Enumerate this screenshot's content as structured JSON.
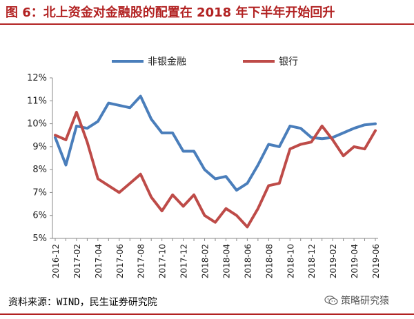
{
  "title": "图 6：北上资金对金融股的配置在 2018 年下半年开始回升",
  "source": "资料来源：WIND，民生证券研究院",
  "watermark": "策略研究猿",
  "colors": {
    "title": "#b22222",
    "series_nonbank": "#4a7ebb",
    "series_bank": "#be4b48"
  },
  "chart_data": {
    "type": "line",
    "title": "",
    "xlabel": "",
    "ylabel": "",
    "ylim": [
      5,
      12
    ],
    "yticks": [
      5,
      6,
      7,
      8,
      9,
      10,
      11,
      12
    ],
    "ytick_labels": [
      "5%",
      "6%",
      "7%",
      "8%",
      "9%",
      "10%",
      "11%",
      "12%"
    ],
    "y_unit": "%",
    "grid": false,
    "legend": "top",
    "categories": [
      "2016-12",
      "2017-01",
      "2017-02",
      "2017-03",
      "2017-04",
      "2017-05",
      "2017-06",
      "2017-07",
      "2017-08",
      "2017-09",
      "2017-10",
      "2017-11",
      "2017-12",
      "2018-01",
      "2018-02",
      "2018-03",
      "2018-04",
      "2018-05",
      "2018-06",
      "2018-07",
      "2018-08",
      "2018-09",
      "2018-10",
      "2018-11",
      "2018-12",
      "2019-01",
      "2019-02",
      "2019-03",
      "2019-04",
      "2019-05",
      "2019-06"
    ],
    "tick_labels": [
      "2016-12",
      "2017-02",
      "2017-04",
      "2017-06",
      "2017-08",
      "2017-10",
      "2017-12",
      "2018-02",
      "2018-04",
      "2018-06",
      "2018-08",
      "2018-10",
      "2018-12",
      "2019-02",
      "2019-04",
      "2019-06"
    ],
    "series": [
      {
        "name": "非银金融",
        "values": [
          9.4,
          8.2,
          9.9,
          9.8,
          10.1,
          10.9,
          10.8,
          10.7,
          11.2,
          10.2,
          9.6,
          9.6,
          8.8,
          8.8,
          8.0,
          7.6,
          7.7,
          7.1,
          7.4,
          8.2,
          9.1,
          9.0,
          9.9,
          9.8,
          9.4,
          9.35,
          9.4,
          9.6,
          9.8,
          9.95,
          10.0
        ]
      },
      {
        "name": "银行",
        "values": [
          9.5,
          9.3,
          10.5,
          9.2,
          7.6,
          7.3,
          7.0,
          7.4,
          7.8,
          6.8,
          6.2,
          6.9,
          6.4,
          6.9,
          6.0,
          5.7,
          6.3,
          6.0,
          5.5,
          6.3,
          7.3,
          7.4,
          8.9,
          9.1,
          9.2,
          9.9,
          9.3,
          8.6,
          9.0,
          8.9,
          9.7
        ]
      }
    ]
  }
}
